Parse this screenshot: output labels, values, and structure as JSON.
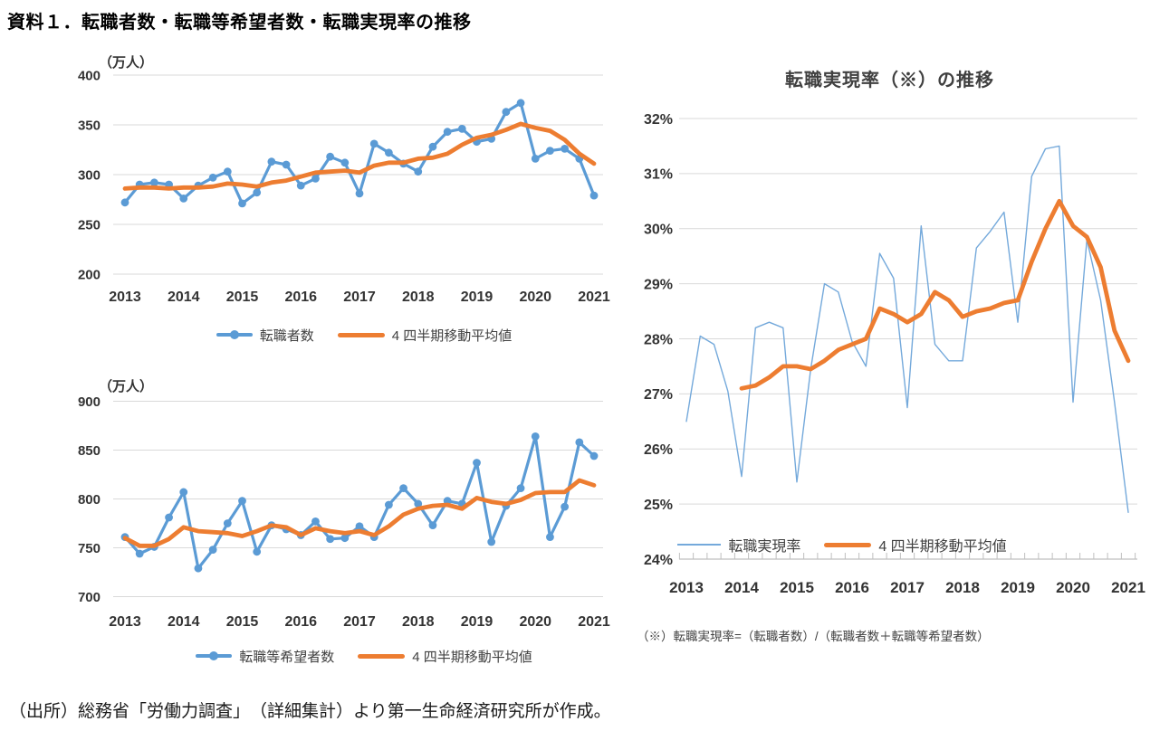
{
  "page": {
    "title": "資料１．転職者数・転職等希望者数・転職実現率の推移",
    "source_note": "（出所）総務省「労働力調査」　（詳細集計）より第一生命経済研究所が作成。"
  },
  "colors": {
    "series_blue": "#5B9BD5",
    "series_blue_thin": "#74A9DB",
    "series_orange": "#ED7D31",
    "gridline": "#D9D9D9",
    "axis_line": "#BFBFBF",
    "tick_text": "#333333"
  },
  "quarters": [
    "2013Q1",
    "2013Q2",
    "2013Q3",
    "2013Q4",
    "2014Q1",
    "2014Q2",
    "2014Q3",
    "2014Q4",
    "2015Q1",
    "2015Q2",
    "2015Q3",
    "2015Q4",
    "2016Q1",
    "2016Q2",
    "2016Q3",
    "2016Q4",
    "2017Q1",
    "2017Q2",
    "2017Q3",
    "2017Q4",
    "2018Q1",
    "2018Q2",
    "2018Q3",
    "2018Q4",
    "2019Q1",
    "2019Q2",
    "2019Q3",
    "2019Q4",
    "2020Q1",
    "2020Q2",
    "2020Q3",
    "2020Q4",
    "2021Q1"
  ],
  "year_labels": [
    "2013",
    "2014",
    "2015",
    "2016",
    "2017",
    "2018",
    "2019",
    "2020",
    "2021"
  ],
  "chart_data": [
    {
      "id": "job-changers",
      "type": "line",
      "unit_label": "（万人）",
      "ylim": [
        200,
        400
      ],
      "yticks": [
        400,
        350,
        300,
        250,
        200
      ],
      "ytick_suffix": "",
      "grid": true,
      "legend_position": "bottom",
      "series": [
        {
          "name": "転職者数",
          "color": "#5B9BD5",
          "style": "marker-line",
          "values": [
            272,
            290,
            292,
            290,
            276,
            289,
            297,
            303,
            271,
            282,
            313,
            310,
            289,
            296,
            318,
            312,
            281,
            331,
            322,
            311,
            303,
            328,
            343,
            346,
            333,
            336,
            363,
            372,
            316,
            324,
            326,
            316,
            279
          ]
        },
        {
          "name": "4 四半期移動平均値",
          "color": "#ED7D31",
          "style": "thick-line",
          "values": [
            286,
            287,
            287,
            286,
            287,
            287,
            288,
            291,
            290,
            288,
            292,
            294,
            298,
            302,
            303,
            304,
            302,
            309,
            312,
            312,
            316,
            317,
            321,
            330,
            337,
            340,
            345,
            351,
            347,
            344,
            335,
            321,
            311
          ]
        }
      ]
    },
    {
      "id": "job-change-hopefuls",
      "type": "line",
      "unit_label": "（万人）",
      "ylim": [
        700,
        900
      ],
      "yticks": [
        900,
        850,
        800,
        750,
        700
      ],
      "ytick_suffix": "",
      "grid": true,
      "legend_position": "bottom",
      "series": [
        {
          "name": "転職等希望者数",
          "color": "#5B9BD5",
          "style": "marker-line",
          "values": [
            761,
            744,
            751,
            781,
            807,
            729,
            748,
            775,
            798,
            746,
            773,
            769,
            763,
            777,
            759,
            760,
            772,
            761,
            794,
            811,
            795,
            773,
            798,
            795,
            837,
            756,
            793,
            811,
            864,
            761,
            792,
            858,
            844
          ]
        },
        {
          "name": "4 四半期移動平均値",
          "color": "#ED7D31",
          "style": "thick-line",
          "values": [
            760,
            752,
            752,
            759,
            771,
            767,
            766,
            765,
            762,
            767,
            773,
            771,
            763,
            770,
            767,
            765,
            767,
            763,
            772,
            784,
            790,
            793,
            794,
            790,
            801,
            797,
            795,
            799,
            806,
            807,
            807,
            819,
            814
          ]
        }
      ]
    },
    {
      "id": "realization-rate",
      "type": "line",
      "title": "転職実現率（※）の推移",
      "ylim": [
        24,
        32
      ],
      "yticks": [
        32,
        31,
        30,
        29,
        28,
        27,
        26,
        25,
        24
      ],
      "ytick_suffix": "%",
      "grid": true,
      "axis_line": true,
      "legend_position": "inside-bottom",
      "footnote": "（※）転職実現率=（転職者数）/（転職者数＋転職等希望者数）",
      "series": [
        {
          "name": "転職実現率",
          "color": "#74A9DB",
          "style": "thin-line",
          "values": [
            26.5,
            28.05,
            27.9,
            27.05,
            25.5,
            28.2,
            28.3,
            28.2,
            25.4,
            27.45,
            29.0,
            28.85,
            27.95,
            27.5,
            29.55,
            29.1,
            26.75,
            30.05,
            27.9,
            27.6,
            27.6,
            29.65,
            29.95,
            30.3,
            28.3,
            30.95,
            31.45,
            31.5,
            26.85,
            29.8,
            28.7,
            26.85,
            24.85
          ]
        },
        {
          "name": "4 四半期移動平均値",
          "color": "#ED7D31",
          "style": "thick-line",
          "values": [
            null,
            null,
            null,
            null,
            27.1,
            27.15,
            27.3,
            27.5,
            27.5,
            27.45,
            27.6,
            27.8,
            27.9,
            28.0,
            28.55,
            28.45,
            28.3,
            28.45,
            28.85,
            28.7,
            28.4,
            28.5,
            28.55,
            28.65,
            28.7,
            29.4,
            30.0,
            30.5,
            30.05,
            29.85,
            29.3,
            28.15,
            27.6
          ]
        }
      ]
    }
  ]
}
